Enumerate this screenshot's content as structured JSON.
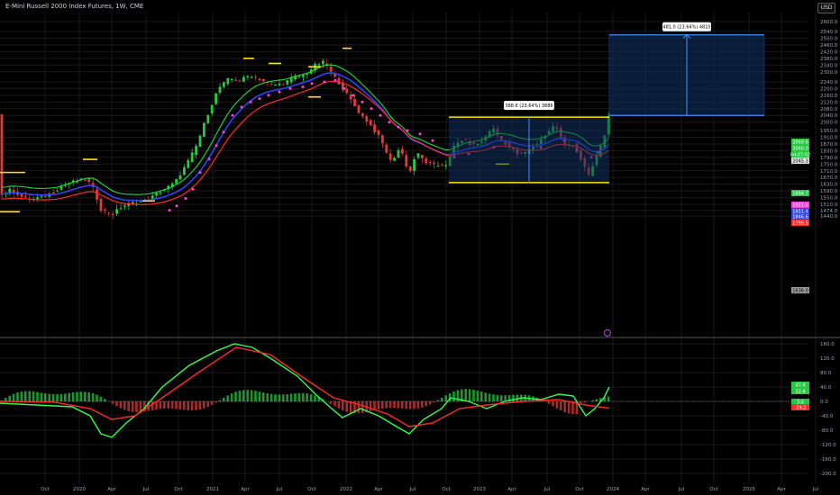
{
  "header": {
    "title": "E-Mini Russell 2000 Index Futures, 1W, CME",
    "currency_button": "USD"
  },
  "colors": {
    "background": "#000000",
    "grid": "#1a1a1a",
    "up_candle": "#26c940",
    "down_candle": "#e03a3a",
    "ema_green": "#1fdc3a",
    "ema_blue": "#2d45ff",
    "ema_red": "#ff2b2b",
    "dots": "#ff3fd8",
    "yellow_level": "#ffe600",
    "range_box": "#0e2f5e",
    "macd_line": "#32ff50",
    "signal_line": "#ff2a2a"
  },
  "chart_data": [
    {
      "type": "candlestick",
      "title": "E-Mini Russell 2000 Index Futures, 1W, CME",
      "x_ticks": [
        "Oct",
        "2020",
        "Apr",
        "Jul",
        "Oct",
        "2021",
        "Apr",
        "Jul",
        "Oct",
        "2022",
        "Apr",
        "Jul",
        "Oct",
        "2023",
        "Apr",
        "Jul",
        "Oct",
        "2024",
        "Apr",
        "Jul",
        "Oct",
        "2025",
        "Apr",
        "Jul"
      ],
      "y_ticks": [
        1440.0,
        1474.0,
        1510.0,
        1550.0,
        1590.0,
        1630.0,
        1670.0,
        1710.0,
        1750.0,
        1790.0,
        1830.0,
        1870.0,
        1910.0,
        1950.0,
        2000.0,
        2040.0,
        2080.0,
        2120.0,
        2160.0,
        2200.0,
        2240.0,
        2300.0,
        2340.0,
        2380.0,
        2420.0,
        2460.0,
        2500.0,
        2540.0,
        2600.0
      ],
      "ylim": [
        1440,
        2620
      ],
      "price_labels": [
        {
          "text": "2069.6",
          "color": "#26c940"
        },
        {
          "text": "2060.0",
          "color": "#26c940"
        },
        {
          "text": "04:07:02",
          "color": "#26c940"
        },
        {
          "text": "2045.3",
          "color": "#e0e0e0"
        },
        {
          "text": "1884.7",
          "color": "#26c940"
        },
        {
          "text": "1851.4",
          "color": "#ff3fd8"
        },
        {
          "text": "1851.4",
          "color": "#2d45ff"
        },
        {
          "text": "1846.6",
          "color": "#2d45ff"
        },
        {
          "text": "1799.5",
          "color": "#ff2b2b"
        },
        {
          "text": "1636.0",
          "color": "#9a9a9a"
        }
      ],
      "annotations": [
        {
          "text": "388.6 (23.64%) 3886",
          "type": "measure",
          "from": 1640,
          "to": 2030
        },
        {
          "text": "481.0 (23.64%) 4810",
          "type": "projection",
          "from": 2040,
          "to": 2520
        }
      ]
    },
    {
      "type": "macd",
      "y_ticks": [
        160.0,
        120.0,
        80.0,
        40.0,
        0.0,
        -40.0,
        -80.0,
        -120.0,
        -160.0,
        -200.0
      ],
      "ylim": [
        -215,
        180
      ],
      "value_labels": [
        {
          "text": "47.4",
          "color": "#26c940"
        },
        {
          "text": "32.4",
          "color": "#26c940"
        },
        {
          "text": "3.6",
          "color": "#26c940"
        },
        {
          "text": "-19.2",
          "color": "#ff2b2b"
        }
      ]
    }
  ]
}
